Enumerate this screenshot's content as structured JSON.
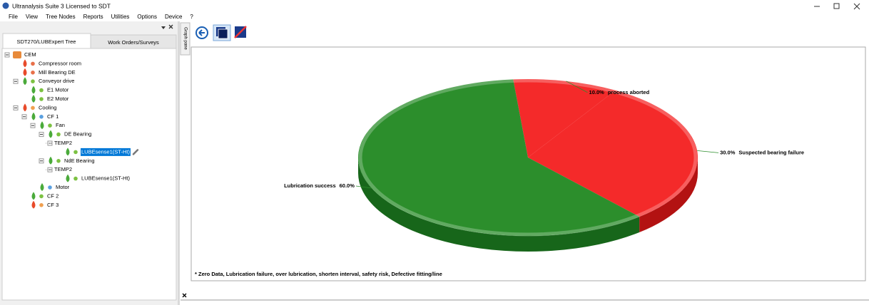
{
  "window": {
    "title": "Ultranalysis Suite 3 Licensed to SDT"
  },
  "menu": [
    "File",
    "View",
    "Tree Nodes",
    "Reports",
    "Utilities",
    "Options",
    "Device",
    "?"
  ],
  "tabs": [
    "SDT270/LUBExpert Tree",
    "Work Orders/Surveys"
  ],
  "side_tab": "Graph pane",
  "tree": [
    {
      "label": "CEM",
      "children": [
        {
          "label": "Compressor room",
          "dot": "#e8704a"
        },
        {
          "label": "Mill Bearing DE",
          "dot": "#e8704a"
        },
        {
          "label": "Conveyor drive",
          "dot": "#7cc142",
          "children": [
            {
              "label": "E1 Motor",
              "dot": "#7cc142"
            },
            {
              "label": "E2 Motor",
              "dot": "#7cc142"
            }
          ]
        },
        {
          "label": "Cooling",
          "dot": "#f0a050",
          "children": [
            {
              "label": "CF 1",
              "dot": "#5aa0e0",
              "children": [
                {
                  "label": "Fan",
                  "dot": "#7cc142",
                  "children": [
                    {
                      "label": "DE Bearing",
                      "dot": "#7cc142",
                      "children": [
                        {
                          "label": "TEMP2",
                          "children": [
                            {
                              "label": "LUBEsense1(ST-Ht)",
                              "dot": "#7cc142",
                              "selected": true
                            }
                          ]
                        }
                      ]
                    },
                    {
                      "label": "NdE Bearing",
                      "dot": "#7cc142",
                      "children": [
                        {
                          "label": "TEMP2",
                          "children": [
                            {
                              "label": "LUBEsense1(ST-Ht)",
                              "dot": "#7cc142"
                            }
                          ]
                        }
                      ]
                    }
                  ]
                },
                {
                  "label": "Motor",
                  "dot": "#5aa0e0"
                }
              ]
            },
            {
              "label": "CF 2",
              "dot": "#7cc142"
            },
            {
              "label": "CF 3",
              "dot": "#f0a050"
            }
          ]
        }
      ]
    }
  ],
  "chart_data": {
    "type": "pie",
    "categories": [
      "process aborted",
      "Suspected bearing failure",
      "Lubrication success"
    ],
    "values": [
      10,
      30,
      60
    ],
    "value_labels": [
      "10.0%",
      "30.0%",
      "60.0%"
    ],
    "colors": [
      "#f42a2a",
      "#f42a2a",
      "#2c8e2c"
    ],
    "footnote": "* Zero Data,  Lubrication failure,  over lubrication,  shorten interval,  safety risk,  Defective fitting/line"
  }
}
